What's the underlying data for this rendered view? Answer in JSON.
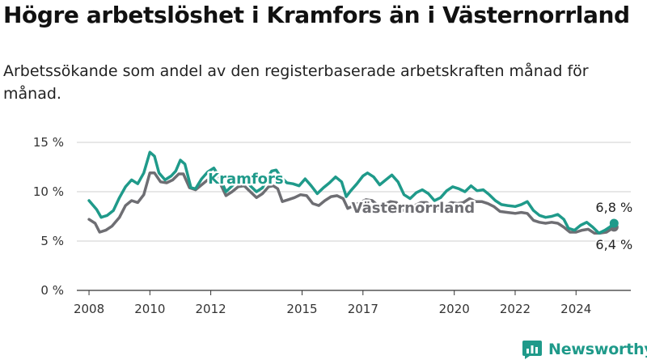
{
  "title": "Högre arbetslöshet i Kramfors än i Västernorrland",
  "subtitle": "Arbetssökande som andel av den registerbaserade arbetskraften månad för månad.",
  "brand": {
    "name": "Newsworthy",
    "color": "#1f9a8a"
  },
  "chart_data": {
    "type": "line",
    "xlabel": "",
    "ylabel": "",
    "ylim": [
      0,
      15
    ],
    "xlim": [
      2007.6,
      2025.8
    ],
    "y_ticks": [
      {
        "value": 0,
        "label": "0 %"
      },
      {
        "value": 5,
        "label": "5 %"
      },
      {
        "value": 10,
        "label": "10 %"
      },
      {
        "value": 15,
        "label": "15 %"
      }
    ],
    "x_ticks": [
      {
        "value": 2008,
        "label": "2008"
      },
      {
        "value": 2010,
        "label": "2010"
      },
      {
        "value": 2012,
        "label": "2012"
      },
      {
        "value": 2015,
        "label": "2015"
      },
      {
        "value": 2017,
        "label": "2017"
      },
      {
        "value": 2020,
        "label": "2020"
      },
      {
        "value": 2022,
        "label": "2022"
      },
      {
        "value": 2024,
        "label": "2024"
      }
    ],
    "grid": true,
    "legend": "inline labels",
    "series": [
      {
        "name": "Kramfors",
        "color": "#1f9a8a",
        "label_position": {
          "x": 2013.15,
          "y": 10.8
        },
        "end_label": "6,8 %",
        "points": [
          [
            2008.0,
            9.1
          ],
          [
            2008.25,
            8.2
          ],
          [
            2008.4,
            7.4
          ],
          [
            2008.6,
            7.6
          ],
          [
            2008.8,
            8.1
          ],
          [
            2009.0,
            9.4
          ],
          [
            2009.2,
            10.5
          ],
          [
            2009.4,
            11.2
          ],
          [
            2009.6,
            10.8
          ],
          [
            2009.8,
            11.9
          ],
          [
            2010.0,
            14.0
          ],
          [
            2010.15,
            13.6
          ],
          [
            2010.3,
            11.9
          ],
          [
            2010.5,
            11.2
          ],
          [
            2010.7,
            11.6
          ],
          [
            2010.85,
            12.1
          ],
          [
            2011.0,
            13.2
          ],
          [
            2011.15,
            12.8
          ],
          [
            2011.35,
            10.4
          ],
          [
            2011.5,
            10.3
          ],
          [
            2011.7,
            11.3
          ],
          [
            2011.9,
            12.0
          ],
          [
            2012.1,
            12.4
          ],
          [
            2012.3,
            11.4
          ],
          [
            2012.5,
            10.0
          ],
          [
            2012.7,
            10.6
          ],
          [
            2012.9,
            11.2
          ],
          [
            2013.1,
            11.6
          ],
          [
            2013.3,
            10.6
          ],
          [
            2013.5,
            10.0
          ],
          [
            2013.7,
            10.4
          ],
          [
            2013.85,
            11.3
          ],
          [
            2014.0,
            12.1
          ],
          [
            2014.15,
            12.2
          ],
          [
            2014.3,
            11.5
          ],
          [
            2014.5,
            10.9
          ],
          [
            2014.7,
            10.8
          ],
          [
            2014.9,
            10.6
          ],
          [
            2015.1,
            11.3
          ],
          [
            2015.3,
            10.6
          ],
          [
            2015.5,
            9.8
          ],
          [
            2015.7,
            10.4
          ],
          [
            2015.9,
            10.9
          ],
          [
            2016.1,
            11.5
          ],
          [
            2016.3,
            11.0
          ],
          [
            2016.45,
            9.5
          ],
          [
            2016.6,
            10.1
          ],
          [
            2016.8,
            10.8
          ],
          [
            2017.0,
            11.6
          ],
          [
            2017.15,
            11.9
          ],
          [
            2017.35,
            11.5
          ],
          [
            2017.55,
            10.7
          ],
          [
            2017.75,
            11.2
          ],
          [
            2017.95,
            11.7
          ],
          [
            2018.15,
            11.0
          ],
          [
            2018.35,
            9.7
          ],
          [
            2018.55,
            9.3
          ],
          [
            2018.75,
            9.9
          ],
          [
            2018.95,
            10.2
          ],
          [
            2019.15,
            9.8
          ],
          [
            2019.35,
            9.1
          ],
          [
            2019.55,
            9.4
          ],
          [
            2019.75,
            10.1
          ],
          [
            2019.95,
            10.5
          ],
          [
            2020.15,
            10.3
          ],
          [
            2020.35,
            10.0
          ],
          [
            2020.55,
            10.6
          ],
          [
            2020.75,
            10.1
          ],
          [
            2020.95,
            10.2
          ],
          [
            2021.15,
            9.7
          ],
          [
            2021.35,
            9.1
          ],
          [
            2021.55,
            8.7
          ],
          [
            2021.75,
            8.6
          ],
          [
            2022.0,
            8.5
          ],
          [
            2022.2,
            8.7
          ],
          [
            2022.4,
            9.0
          ],
          [
            2022.6,
            8.1
          ],
          [
            2022.8,
            7.6
          ],
          [
            2023.0,
            7.4
          ],
          [
            2023.2,
            7.5
          ],
          [
            2023.4,
            7.7
          ],
          [
            2023.6,
            7.2
          ],
          [
            2023.75,
            6.3
          ],
          [
            2023.95,
            6.1
          ],
          [
            2024.15,
            6.6
          ],
          [
            2024.35,
            6.9
          ],
          [
            2024.55,
            6.4
          ],
          [
            2024.75,
            5.8
          ],
          [
            2024.95,
            6.1
          ],
          [
            2025.1,
            6.4
          ],
          [
            2025.25,
            6.8
          ]
        ]
      },
      {
        "name": "Västernorrland",
        "color": "#6e6e73",
        "label_position": {
          "x": 2018.65,
          "y": 7.85
        },
        "end_label": "6,4 %",
        "points": [
          [
            2008.0,
            7.2
          ],
          [
            2008.2,
            6.8
          ],
          [
            2008.35,
            5.9
          ],
          [
            2008.55,
            6.1
          ],
          [
            2008.75,
            6.5
          ],
          [
            2009.0,
            7.4
          ],
          [
            2009.2,
            8.6
          ],
          [
            2009.4,
            9.1
          ],
          [
            2009.6,
            8.9
          ],
          [
            2009.8,
            9.7
          ],
          [
            2010.0,
            11.9
          ],
          [
            2010.15,
            11.9
          ],
          [
            2010.35,
            11.0
          ],
          [
            2010.55,
            10.9
          ],
          [
            2010.75,
            11.2
          ],
          [
            2010.95,
            11.8
          ],
          [
            2011.1,
            11.8
          ],
          [
            2011.3,
            10.4
          ],
          [
            2011.5,
            10.2
          ],
          [
            2011.7,
            10.7
          ],
          [
            2011.9,
            11.2
          ],
          [
            2012.1,
            11.5
          ],
          [
            2012.3,
            10.9
          ],
          [
            2012.5,
            9.6
          ],
          [
            2012.7,
            10.0
          ],
          [
            2012.9,
            10.5
          ],
          [
            2013.1,
            10.6
          ],
          [
            2013.3,
            10.0
          ],
          [
            2013.5,
            9.4
          ],
          [
            2013.7,
            9.8
          ],
          [
            2013.9,
            10.5
          ],
          [
            2014.05,
            10.6
          ],
          [
            2014.2,
            10.3
          ],
          [
            2014.35,
            9.0
          ],
          [
            2014.55,
            9.2
          ],
          [
            2014.75,
            9.4
          ],
          [
            2014.95,
            9.7
          ],
          [
            2015.15,
            9.6
          ],
          [
            2015.35,
            8.8
          ],
          [
            2015.55,
            8.6
          ],
          [
            2015.75,
            9.1
          ],
          [
            2015.95,
            9.5
          ],
          [
            2016.15,
            9.6
          ],
          [
            2016.35,
            9.3
          ],
          [
            2016.5,
            8.3
          ],
          [
            2016.7,
            8.6
          ],
          [
            2016.9,
            8.9
          ],
          [
            2017.1,
            9.2
          ],
          [
            2017.3,
            9.1
          ],
          [
            2017.5,
            8.6
          ],
          [
            2017.7,
            8.7
          ],
          [
            2017.9,
            9.0
          ],
          [
            2018.1,
            8.9
          ],
          [
            2018.3,
            8.1
          ],
          [
            2018.5,
            8.2
          ],
          [
            2018.7,
            8.6
          ],
          [
            2018.9,
            8.9
          ],
          [
            2019.1,
            8.9
          ],
          [
            2019.3,
            8.4
          ],
          [
            2019.5,
            8.3
          ],
          [
            2019.7,
            8.6
          ],
          [
            2019.9,
            8.9
          ],
          [
            2020.1,
            8.8
          ],
          [
            2020.3,
            8.9
          ],
          [
            2020.5,
            9.3
          ],
          [
            2020.7,
            9.0
          ],
          [
            2020.9,
            9.0
          ],
          [
            2021.1,
            8.8
          ],
          [
            2021.3,
            8.5
          ],
          [
            2021.5,
            8.0
          ],
          [
            2021.75,
            7.9
          ],
          [
            2022.0,
            7.8
          ],
          [
            2022.2,
            7.9
          ],
          [
            2022.4,
            7.8
          ],
          [
            2022.6,
            7.1
          ],
          [
            2022.8,
            6.9
          ],
          [
            2023.0,
            6.8
          ],
          [
            2023.2,
            6.9
          ],
          [
            2023.4,
            6.8
          ],
          [
            2023.6,
            6.4
          ],
          [
            2023.8,
            5.9
          ],
          [
            2024.0,
            5.9
          ],
          [
            2024.2,
            6.1
          ],
          [
            2024.4,
            6.2
          ],
          [
            2024.6,
            5.8
          ],
          [
            2024.8,
            5.8
          ],
          [
            2025.0,
            5.9
          ],
          [
            2025.15,
            6.2
          ],
          [
            2025.25,
            6.4
          ]
        ]
      }
    ]
  }
}
